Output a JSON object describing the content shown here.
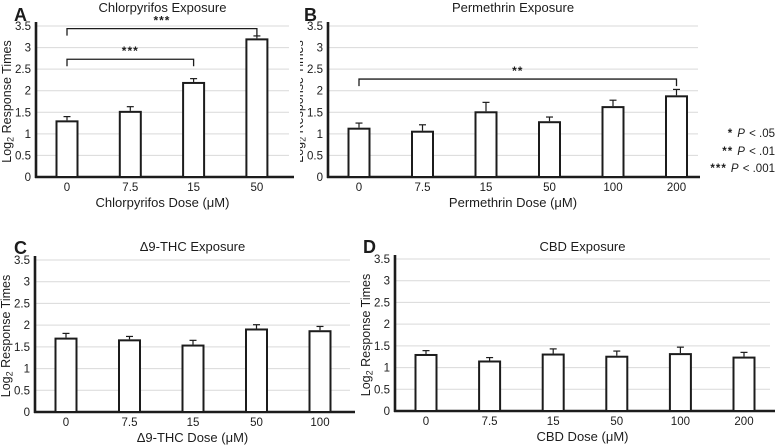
{
  "figure": {
    "background": "#ffffff"
  },
  "colors": {
    "bar_fill": "#ffffff",
    "bar_stroke": "#1c1c1c",
    "grid": "#d9d9d9",
    "axis": "#1c1c1c",
    "text": "#1c1c1c"
  },
  "legend": {
    "items": [
      {
        "stars": "*",
        "p": "P",
        "rest": "< .05"
      },
      {
        "stars": "**",
        "p": "P",
        "rest": "< .01"
      },
      {
        "stars": "***",
        "p": "P",
        "rest": "< .001"
      }
    ]
  },
  "chart_data": [
    {
      "type": "bar",
      "panel_label": "A",
      "title": "Chlorpyrifos Exposure",
      "categories": [
        "0",
        "7.5",
        "15",
        "50"
      ],
      "values": [
        1.29,
        1.51,
        2.18,
        3.19
      ],
      "errors": [
        0.11,
        0.12,
        0.1,
        0.08
      ],
      "xlabel": "Chlorpyrifos Dose (μM)",
      "ylabel": "Log2 Response Times",
      "ylabel_parts": {
        "pre": "Log",
        "sub": "2",
        "post": " Response Times"
      },
      "ylim": [
        0,
        3.5
      ],
      "ytick_step": 0.5,
      "grid": true,
      "significance": [
        {
          "from": 0,
          "to": 3,
          "label": "***",
          "at": 3.44
        },
        {
          "from": 0,
          "to": 2,
          "label": "***",
          "at": 2.73
        }
      ]
    },
    {
      "type": "bar",
      "panel_label": "B",
      "title": "Permethrin Exposure",
      "categories": [
        "0",
        "7.5",
        "15",
        "50",
        "100",
        "200"
      ],
      "values": [
        1.12,
        1.05,
        1.5,
        1.27,
        1.62,
        1.87
      ],
      "errors": [
        0.13,
        0.16,
        0.23,
        0.12,
        0.16,
        0.16
      ],
      "xlabel": "Permethrin Dose (μM)",
      "ylabel": "Log2 Response Times",
      "ylabel_parts": {
        "pre": "Log",
        "sub": "2",
        "post": " Response Times"
      },
      "ylim": [
        0,
        3.5
      ],
      "ytick_step": 0.5,
      "grid": true,
      "significance": [
        {
          "from": 0,
          "to": 5,
          "label": "**",
          "at": 2.27
        }
      ]
    },
    {
      "type": "bar",
      "panel_label": "C",
      "title": "Δ9-THC Exposure",
      "categories": [
        "0",
        "7.5",
        "15",
        "50",
        "100"
      ],
      "values": [
        1.69,
        1.65,
        1.53,
        1.9,
        1.86
      ],
      "errors": [
        0.12,
        0.09,
        0.12,
        0.11,
        0.11
      ],
      "xlabel": "Δ9-THC Dose (μM)",
      "ylabel": "Log2 Response Times",
      "ylabel_parts": {
        "pre": "Log",
        "sub": "2",
        "post": " Response Times"
      },
      "ylim": [
        0,
        3.5
      ],
      "ytick_step": 0.5,
      "grid": true,
      "significance": []
    },
    {
      "type": "bar",
      "panel_label": "D",
      "title": "CBD Exposure",
      "categories": [
        "0",
        "7.5",
        "15",
        "50",
        "100",
        "200"
      ],
      "values": [
        1.29,
        1.14,
        1.3,
        1.25,
        1.31,
        1.23
      ],
      "errors": [
        0.1,
        0.09,
        0.13,
        0.13,
        0.16,
        0.12
      ],
      "xlabel": "CBD Dose (μM)",
      "ylabel": "Log2 Response Times",
      "ylabel_parts": {
        "pre": "Log",
        "sub": "2",
        "post": " Response Times"
      },
      "ylim": [
        0,
        3.5
      ],
      "ytick_step": 0.5,
      "grid": true,
      "significance": []
    }
  ]
}
